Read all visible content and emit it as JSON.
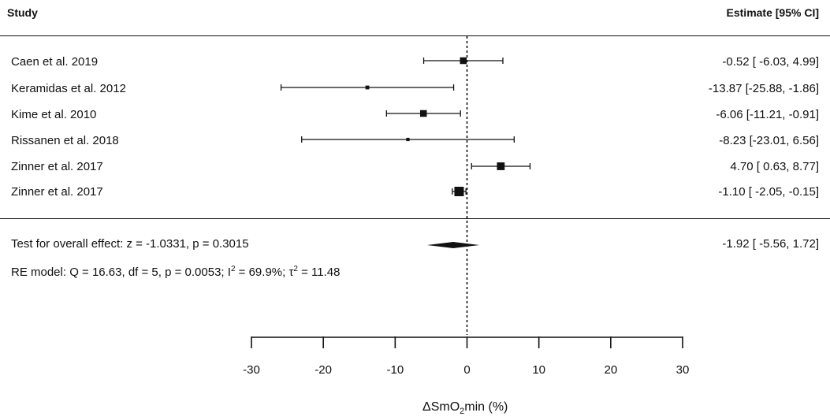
{
  "header": {
    "study_label": "Study",
    "estimate_label": "Estimate [95% CI]"
  },
  "chart_data": {
    "type": "forest",
    "studies": [
      {
        "study": "Caen et al. 2019",
        "estimate": -0.52,
        "ci_low": -6.03,
        "ci_high": 4.99,
        "label": "-0.52 [ -6.03,  4.99]",
        "weight": 0.55
      },
      {
        "study": "Keramidas et al. 2012",
        "estimate": -13.87,
        "ci_low": -25.88,
        "ci_high": -1.86,
        "label": "-13.87 [-25.88, -1.86]",
        "weight": 0.18
      },
      {
        "study": "Kime et al. 2010",
        "estimate": -6.06,
        "ci_low": -11.21,
        "ci_high": -0.91,
        "label": "-6.06 [-11.21, -0.91]",
        "weight": 0.55
      },
      {
        "study": "Rissanen et al. 2018",
        "estimate": -8.23,
        "ci_low": -23.01,
        "ci_high": 6.56,
        "label": "-8.23 [-23.01,  6.56]",
        "weight": 0.12
      },
      {
        "study": "Zinner et al. 2017",
        "estimate": 4.7,
        "ci_low": 0.63,
        "ci_high": 8.77,
        "label": "4.70 [  0.63,  8.77]",
        "weight": 0.68
      },
      {
        "study": "Zinner et al. 2017",
        "estimate": -1.1,
        "ci_low": -2.05,
        "ci_high": -0.15,
        "label": "-1.10 [ -2.05, -0.15]",
        "weight": 0.9
      }
    ],
    "overall": {
      "test_text": "Test for overall effect: z = -1.0331, p = 0.3015",
      "model_text_parts": [
        "RE model: Q = 16.63, df = 5, p = 0.0053; I",
        "2",
        " = 69.9%; τ",
        "2",
        " = 11.48"
      ],
      "estimate": -1.92,
      "ci_low": -5.56,
      "ci_high": 1.72,
      "label": "-1.92 [ -5.56,  1.72]"
    },
    "x_ticks": [
      -30,
      -20,
      -10,
      0,
      10,
      20,
      30
    ],
    "x_tick_labels": [
      "-30",
      "-20",
      "-10",
      "0",
      "10",
      "20",
      "30"
    ],
    "xlim": [
      -30,
      30
    ],
    "xlabel_parts": [
      "ΔSmO",
      "2",
      "min (%)"
    ],
    "reference_line": 0
  }
}
